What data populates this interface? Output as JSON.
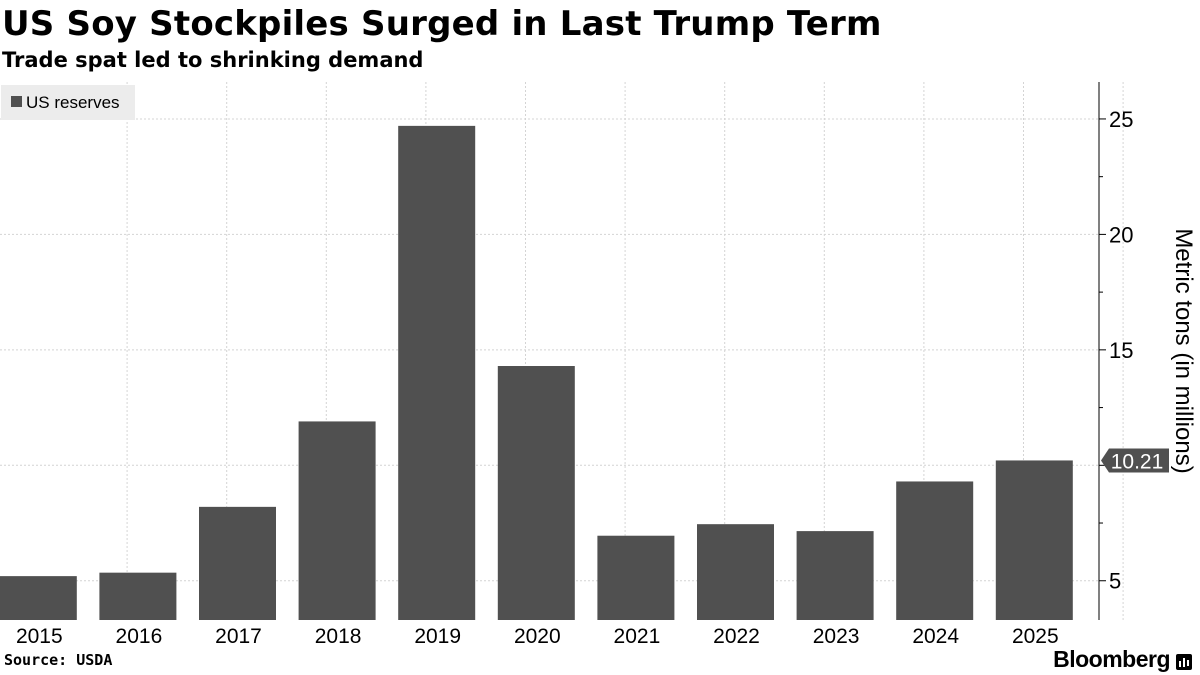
{
  "header": {
    "title": "US Soy Stockpiles Surged in Last Trump Term",
    "subtitle": "Trade spat led to shrinking demand"
  },
  "footer": {
    "source": "Source: USDA",
    "brand": "Bloomberg"
  },
  "colors": {
    "bar": "#505050",
    "grid": "#d4d4d4",
    "legend_bg": "#ececec",
    "callout_bg": "#505050",
    "callout_text": "#ffffff"
  },
  "chart_data": {
    "type": "bar",
    "title": "US Soy Stockpiles Surged in Last Trump Term",
    "subtitle": "Trade spat led to shrinking demand",
    "categories": [
      "2015",
      "2016",
      "2017",
      "2018",
      "2019",
      "2020",
      "2021",
      "2022",
      "2023",
      "2024",
      "2025"
    ],
    "series": [
      {
        "name": "US reserves",
        "values": [
          5.2,
          5.35,
          8.2,
          11.9,
          24.7,
          14.3,
          6.95,
          7.45,
          7.15,
          9.3,
          10.21
        ]
      }
    ],
    "legend": [
      "US reserves"
    ],
    "legend_position": "top-left",
    "xlabel": "",
    "ylabel": "Metric tons (in millions)",
    "y_axis_side": "right",
    "yticks": [
      5,
      10,
      15,
      20,
      25
    ],
    "ytick_labels": [
      "5",
      "",
      "15",
      "20",
      "25"
    ],
    "ylim": [
      3.3,
      26.6
    ],
    "grid": true,
    "last_value_callout": "10.21"
  }
}
